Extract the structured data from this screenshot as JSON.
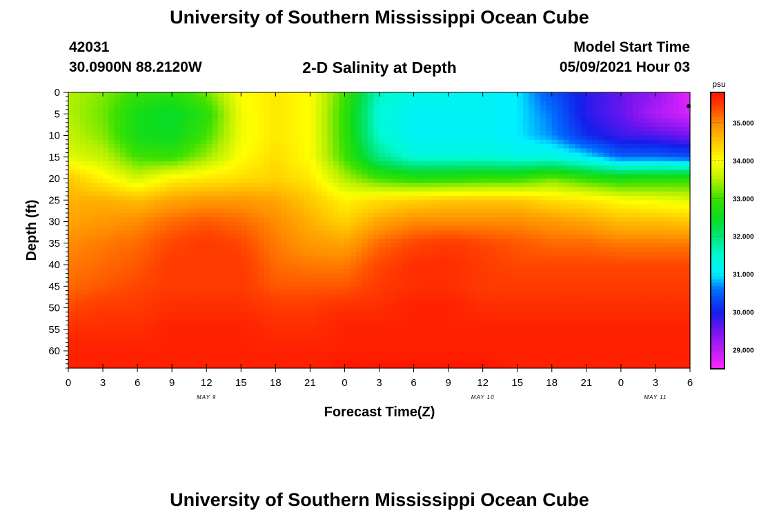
{
  "page": {
    "title_top": "University of Southern Mississippi Ocean Cube",
    "title_bottom": "University of Southern Mississippi Ocean Cube",
    "station_id": "42031",
    "location": "30.0900N  88.2120W",
    "plot_title": "2-D Salinity at Depth",
    "model_start_label": "Model Start Time",
    "model_start_value": "05/09/2021 Hour 03"
  },
  "chart_data": {
    "type": "heatmap",
    "title": "2-D Salinity at Depth",
    "xlabel": "Forecast Time(Z)",
    "ylabel": "Depth (ft)",
    "units": "psu",
    "x_ticks": [
      "0",
      "3",
      "6",
      "9",
      "12",
      "15",
      "18",
      "21",
      "0",
      "3",
      "6",
      "9",
      "12",
      "15",
      "18",
      "21",
      "0",
      "3",
      "6"
    ],
    "x_range_hours": [
      0,
      54
    ],
    "date_labels": [
      {
        "label": "MAY 9",
        "hour": 12
      },
      {
        "label": "MAY 10",
        "hour": 36
      },
      {
        "label": "MAY 11",
        "hour": 51
      }
    ],
    "y_ticks": [
      0,
      5,
      10,
      15,
      20,
      25,
      30,
      35,
      40,
      45,
      50,
      55,
      60
    ],
    "y_range": [
      0,
      64
    ],
    "colorbar": {
      "min": 28.5,
      "max": 35.8,
      "ticks": [
        "35.000",
        "34.000",
        "33.000",
        "32.000",
        "31.000",
        "30.000",
        "29.000"
      ],
      "tick_values": [
        35,
        34,
        33,
        32,
        31,
        30,
        29
      ]
    },
    "profile_hours": [
      0,
      3,
      6,
      9,
      12,
      15,
      18,
      21,
      24,
      27,
      30,
      33,
      36,
      39,
      42,
      45,
      48,
      51,
      54
    ],
    "profile_depths": [
      0,
      5,
      10,
      15,
      20,
      25,
      30,
      35,
      40,
      45,
      50,
      55,
      60,
      64
    ],
    "salinity_profiles": [
      [
        33.5,
        33.5,
        33.6,
        33.8,
        34.5,
        34.7,
        34.8,
        35.0,
        35.1,
        35.2,
        35.4,
        35.6,
        35.7,
        35.7
      ],
      [
        33.3,
        33.2,
        33.3,
        33.6,
        34.1,
        34.7,
        34.9,
        35.1,
        35.2,
        35.3,
        35.5,
        35.6,
        35.7,
        35.7
      ],
      [
        32.9,
        32.6,
        32.6,
        33.0,
        33.7,
        34.6,
        35.0,
        35.2,
        35.3,
        35.4,
        35.5,
        35.6,
        35.7,
        35.7
      ],
      [
        32.8,
        32.4,
        32.5,
        32.9,
        34.1,
        34.8,
        35.2,
        35.4,
        35.5,
        35.5,
        35.6,
        35.7,
        35.7,
        35.7
      ],
      [
        33.2,
        32.8,
        33.0,
        33.4,
        34.2,
        34.9,
        35.3,
        35.5,
        35.5,
        35.5,
        35.6,
        35.7,
        35.7,
        35.7
      ],
      [
        34.0,
        33.9,
        33.9,
        34.0,
        34.3,
        34.9,
        35.2,
        35.4,
        35.5,
        35.5,
        35.6,
        35.7,
        35.7,
        35.7
      ],
      [
        34.2,
        34.2,
        34.2,
        34.3,
        34.4,
        34.8,
        35.0,
        35.1,
        35.2,
        35.3,
        35.5,
        35.6,
        35.7,
        35.7
      ],
      [
        34.0,
        34.0,
        34.0,
        34.0,
        34.2,
        34.5,
        34.7,
        34.9,
        35.1,
        35.3,
        35.5,
        35.6,
        35.7,
        35.7
      ],
      [
        33.0,
        32.9,
        32.9,
        33.0,
        33.5,
        34.1,
        34.4,
        34.8,
        35.1,
        35.3,
        35.6,
        35.7,
        35.7,
        35.8
      ],
      [
        31.6,
        31.4,
        31.5,
        31.9,
        33.0,
        34.3,
        34.8,
        35.2,
        35.4,
        35.5,
        35.6,
        35.7,
        35.7,
        35.8
      ],
      [
        31.3,
        31.1,
        31.1,
        31.4,
        32.8,
        34.4,
        35.0,
        35.4,
        35.6,
        35.6,
        35.7,
        35.7,
        35.7,
        35.8
      ],
      [
        31.2,
        31.1,
        31.1,
        31.4,
        32.8,
        34.5,
        35.0,
        35.5,
        35.6,
        35.6,
        35.7,
        35.7,
        35.7,
        35.8
      ],
      [
        31.1,
        31.1,
        31.1,
        31.4,
        32.9,
        34.5,
        35.0,
        35.4,
        35.5,
        35.5,
        35.6,
        35.7,
        35.7,
        35.8
      ],
      [
        31.0,
        31.0,
        31.0,
        31.3,
        32.9,
        34.5,
        35.0,
        35.3,
        35.4,
        35.5,
        35.6,
        35.7,
        35.7,
        35.7
      ],
      [
        30.4,
        30.6,
        30.7,
        31.3,
        33.2,
        34.3,
        34.9,
        35.2,
        35.4,
        35.5,
        35.6,
        35.7,
        35.7,
        35.7
      ],
      [
        29.9,
        29.9,
        30.1,
        31.0,
        32.9,
        34.2,
        34.8,
        35.2,
        35.4,
        35.5,
        35.6,
        35.7,
        35.7,
        35.7
      ],
      [
        29.6,
        29.6,
        29.8,
        30.5,
        32.7,
        34.0,
        34.6,
        35.1,
        35.4,
        35.5,
        35.6,
        35.7,
        35.7,
        35.7
      ],
      [
        29.3,
        29.1,
        29.7,
        30.5,
        32.8,
        33.9,
        34.6,
        35.1,
        35.4,
        35.5,
        35.6,
        35.7,
        35.7,
        35.7
      ],
      [
        28.7,
        28.8,
        29.5,
        30.4,
        32.8,
        33.8,
        34.5,
        35.1,
        35.4,
        35.5,
        35.6,
        35.7,
        35.7,
        35.7
      ]
    ]
  }
}
